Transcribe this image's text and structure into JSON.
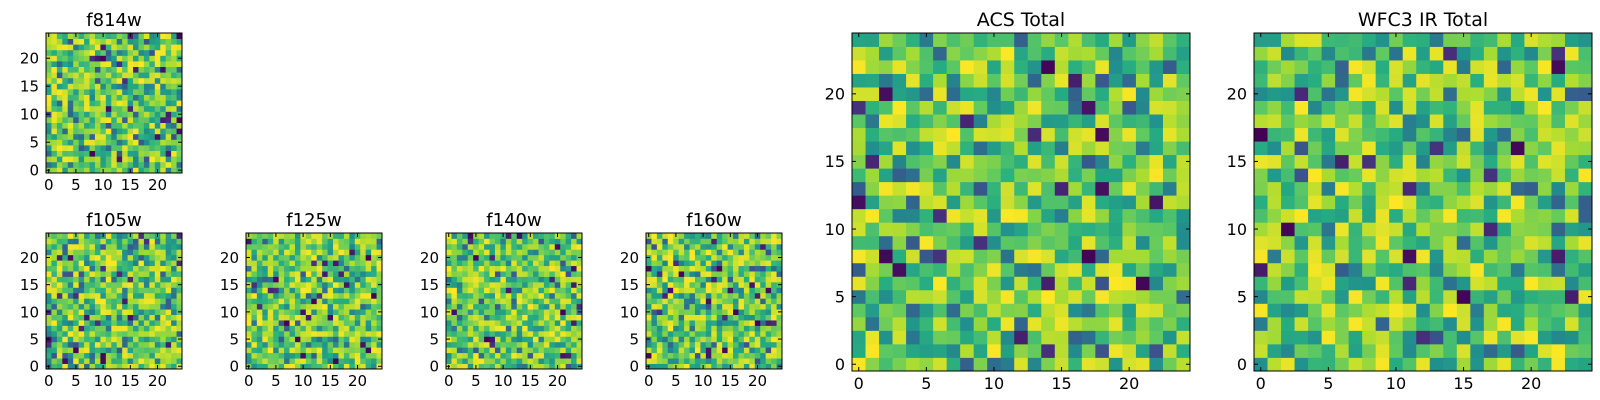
{
  "chart_data": [
    {
      "id": "f814w",
      "type": "heatmap",
      "title": "f814w",
      "cmap": "viridis",
      "seed": 11,
      "grid": [
        25,
        25
      ],
      "xlim": [
        0,
        24
      ],
      "ylim": [
        0,
        24
      ],
      "xticks": [
        0,
        5,
        10,
        15,
        20
      ],
      "yticks": [
        0,
        5,
        10,
        15,
        20
      ],
      "xtick_labels": [
        "0",
        "5",
        "10",
        "15",
        "20"
      ],
      "ytick_labels": [
        "0",
        "5",
        "10",
        "15",
        "20"
      ]
    },
    {
      "id": "f105w",
      "type": "heatmap",
      "title": "f105w",
      "cmap": "viridis",
      "seed": 23,
      "grid": [
        25,
        25
      ],
      "xlim": [
        0,
        24
      ],
      "ylim": [
        0,
        24
      ],
      "xticks": [
        0,
        5,
        10,
        15,
        20
      ],
      "yticks": [
        0,
        5,
        10,
        15,
        20
      ],
      "xtick_labels": [
        "0",
        "5",
        "10",
        "15",
        "20"
      ],
      "ytick_labels": [
        "0",
        "5",
        "10",
        "15",
        "20"
      ]
    },
    {
      "id": "f125w",
      "type": "heatmap",
      "title": "f125w",
      "cmap": "viridis",
      "seed": 37,
      "grid": [
        25,
        25
      ],
      "xlim": [
        0,
        24
      ],
      "ylim": [
        0,
        24
      ],
      "xticks": [
        0,
        5,
        10,
        15,
        20
      ],
      "yticks": [
        0,
        5,
        10,
        15,
        20
      ],
      "xtick_labels": [
        "0",
        "5",
        "10",
        "15",
        "20"
      ],
      "ytick_labels": [
        "0",
        "5",
        "10",
        "15",
        "20"
      ]
    },
    {
      "id": "f140w",
      "type": "heatmap",
      "title": "f140w",
      "cmap": "viridis",
      "seed": 41,
      "grid": [
        25,
        25
      ],
      "xlim": [
        0,
        24
      ],
      "ylim": [
        0,
        24
      ],
      "xticks": [
        0,
        5,
        10,
        15,
        20
      ],
      "yticks": [
        0,
        5,
        10,
        15,
        20
      ],
      "xtick_labels": [
        "0",
        "5",
        "10",
        "15",
        "20"
      ],
      "ytick_labels": [
        "0",
        "5",
        "10",
        "15",
        "20"
      ]
    },
    {
      "id": "f160w",
      "type": "heatmap",
      "title": "f160w",
      "cmap": "viridis",
      "seed": 53,
      "grid": [
        25,
        25
      ],
      "xlim": [
        0,
        24
      ],
      "ylim": [
        0,
        24
      ],
      "xticks": [
        0,
        5,
        10,
        15,
        20
      ],
      "yticks": [
        0,
        5,
        10,
        15,
        20
      ],
      "xtick_labels": [
        "0",
        "5",
        "10",
        "15",
        "20"
      ],
      "ytick_labels": [
        "0",
        "5",
        "10",
        "15",
        "20"
      ]
    },
    {
      "id": "acs-total",
      "type": "heatmap",
      "title": "ACS Total",
      "cmap": "viridis",
      "seed": 67,
      "grid": [
        25,
        25
      ],
      "xlim": [
        0,
        24
      ],
      "ylim": [
        0,
        24
      ],
      "xticks": [
        0,
        5,
        10,
        15,
        20
      ],
      "yticks": [
        0,
        5,
        10,
        15,
        20
      ],
      "xtick_labels": [
        "0",
        "5",
        "10",
        "15",
        "20"
      ],
      "ytick_labels": [
        "0",
        "5",
        "10",
        "15",
        "20"
      ]
    },
    {
      "id": "wfc3-ir-total",
      "type": "heatmap",
      "title": "WFC3 IR Total",
      "cmap": "viridis",
      "seed": 79,
      "grid": [
        25,
        25
      ],
      "xlim": [
        0,
        24
      ],
      "ylim": [
        0,
        24
      ],
      "xticks": [
        0,
        5,
        10,
        15,
        20
      ],
      "yticks": [
        0,
        5,
        10,
        15,
        20
      ],
      "xtick_labels": [
        "0",
        "5",
        "10",
        "15",
        "20"
      ],
      "ytick_labels": [
        "0",
        "5",
        "10",
        "15",
        "20"
      ]
    }
  ]
}
